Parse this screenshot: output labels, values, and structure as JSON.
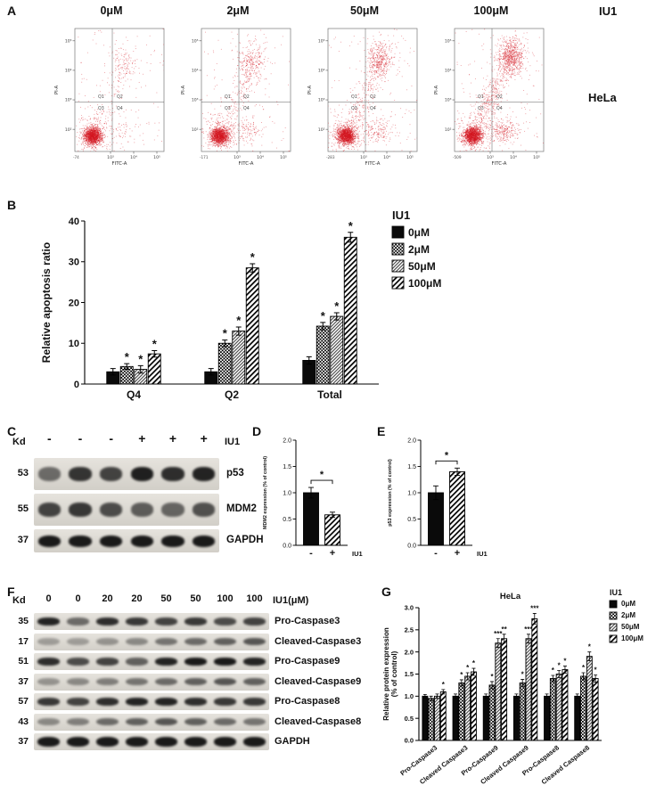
{
  "figure": {
    "panel_labels": {
      "A": "A",
      "B": "B",
      "C": "C",
      "D": "D",
      "E": "E",
      "F": "F",
      "G": "G"
    }
  },
  "panelA": {
    "concentrations": [
      "0μM",
      "2μM",
      "50μM",
      "100μM"
    ],
    "treatment": "IU1",
    "cell_line": "HeLa",
    "x_axis": "FITC-A",
    "y_axis": "PI-A",
    "quadrant_labels": [
      "Q1",
      "Q2",
      "Q3",
      "Q4"
    ],
    "x_ticks": [
      "10³",
      "10⁴",
      "10⁵"
    ],
    "y_ticks": [
      "10²",
      "10³",
      "10⁴",
      "10⁵"
    ],
    "x_min_labels": [
      "-74",
      "-171",
      "-283",
      "-509"
    ],
    "apoptotic_fraction_estimate": [
      0.08,
      0.3,
      0.5,
      0.95
    ]
  },
  "panelC": {
    "kd_label": "Kd",
    "treatment": "IU1",
    "lane_signs": [
      "-",
      "-",
      "-",
      "+",
      "+",
      "+"
    ],
    "rows": [
      {
        "kd": "53",
        "label": "p53",
        "intensities": [
          0.55,
          0.82,
          0.75,
          0.92,
          0.85,
          0.9
        ]
      },
      {
        "kd": "55",
        "label": "MDM2",
        "intensities": [
          0.75,
          0.8,
          0.7,
          0.62,
          0.58,
          0.68
        ]
      },
      {
        "kd": "37",
        "label": "GAPDH",
        "intensities": [
          0.95,
          0.95,
          0.95,
          0.95,
          0.95,
          0.95
        ]
      }
    ]
  },
  "panelF": {
    "kd_label": "Kd",
    "treatment": "IU1(μM)",
    "lane_labels": [
      "0",
      "0",
      "20",
      "20",
      "50",
      "50",
      "100",
      "100"
    ],
    "rows": [
      {
        "kd": "35",
        "label": "Pro-Caspase3",
        "intensities": [
          0.9,
          0.55,
          0.85,
          0.8,
          0.75,
          0.8,
          0.7,
          0.75
        ]
      },
      {
        "kd": "17",
        "label": "Cleaved-Caspase3",
        "intensities": [
          0.3,
          0.3,
          0.35,
          0.4,
          0.5,
          0.55,
          0.6,
          0.65
        ]
      },
      {
        "kd": "51",
        "label": "Pro-Caspase9",
        "intensities": [
          0.85,
          0.7,
          0.75,
          0.6,
          0.9,
          0.95,
          0.95,
          0.9
        ]
      },
      {
        "kd": "37",
        "label": "Cleaved-Caspase9",
        "intensities": [
          0.35,
          0.4,
          0.45,
          0.5,
          0.55,
          0.6,
          0.65,
          0.6
        ]
      },
      {
        "kd": "57",
        "label": "Pro-Caspase8",
        "intensities": [
          0.8,
          0.75,
          0.85,
          0.9,
          0.9,
          0.85,
          0.8,
          0.8
        ]
      },
      {
        "kd": "43",
        "label": "Cleaved-Caspase8",
        "intensities": [
          0.4,
          0.45,
          0.55,
          0.6,
          0.65,
          0.6,
          0.55,
          0.5
        ]
      },
      {
        "kd": "37",
        "label": "GAPDH",
        "intensities": [
          0.95,
          0.95,
          0.95,
          0.95,
          0.95,
          0.95,
          0.95,
          0.95
        ]
      }
    ]
  },
  "chart_data": [
    {
      "id": "A",
      "type": "scatter",
      "subplots": [
        "0μM",
        "2μM",
        "50μM",
        "100μM"
      ],
      "xlabel": "FITC-A",
      "ylabel": "PI-A",
      "quadrants": [
        "Q1",
        "Q2",
        "Q3",
        "Q4"
      ]
    },
    {
      "id": "B",
      "type": "bar",
      "ylabel": "Relative apoptosis ratio",
      "ylim": [
        0,
        40
      ],
      "yticks": [
        0,
        10,
        20,
        30,
        40
      ],
      "categories": [
        "Q4",
        "Q2",
        "Total"
      ],
      "legend_title": "IU1",
      "series": [
        {
          "name": "0μM",
          "pattern": "solid",
          "values": [
            3.0,
            3.0,
            5.8
          ],
          "errors": [
            0.8,
            0.8,
            0.9
          ],
          "sig": [
            "",
            "",
            ""
          ]
        },
        {
          "name": "2μM",
          "pattern": "checker",
          "values": [
            4.3,
            10.0,
            14.2
          ],
          "errors": [
            0.7,
            0.8,
            0.9
          ],
          "sig": [
            "*",
            "*",
            "*"
          ]
        },
        {
          "name": "50μM",
          "pattern": "fine",
          "values": [
            3.6,
            13.0,
            16.6
          ],
          "errors": [
            0.9,
            1.0,
            0.9
          ],
          "sig": [
            "*",
            "*",
            "*"
          ]
        },
        {
          "name": "100μM",
          "pattern": "stripes",
          "values": [
            7.4,
            28.5,
            36.0
          ],
          "errors": [
            0.8,
            1.0,
            1.2
          ],
          "sig": [
            "*",
            "*",
            "*"
          ]
        }
      ]
    },
    {
      "id": "D",
      "type": "bar",
      "ylabel": "MDM2 expression (% of control)",
      "ylim": [
        0,
        2
      ],
      "yticks": [
        "0.0",
        "0.5",
        "1.0",
        "1.5",
        "2.0"
      ],
      "categories": [
        "-",
        "+"
      ],
      "xlabel": "IU1",
      "values": [
        1.0,
        0.58
      ],
      "errors": [
        0.1,
        0.05
      ],
      "patterns": [
        "solid",
        "stripes"
      ],
      "sig": "*"
    },
    {
      "id": "E",
      "type": "bar",
      "ylabel": "p53 expression (% of control)",
      "ylim": [
        0,
        2
      ],
      "yticks": [
        "0.0",
        "0.5",
        "1.0",
        "1.5",
        "2.0"
      ],
      "categories": [
        "-",
        "+"
      ],
      "xlabel": "IU1",
      "values": [
        1.0,
        1.4
      ],
      "errors": [
        0.13,
        0.07
      ],
      "patterns": [
        "solid",
        "stripes"
      ],
      "sig": "*"
    },
    {
      "id": "G",
      "type": "bar",
      "title": "HeLa",
      "ylabel_lines": [
        "Relative protein expression",
        "(% of control)"
      ],
      "ylim": [
        0,
        3
      ],
      "yticks": [
        "0.0",
        "0.5",
        "1.0",
        "1.5",
        "2.0",
        "2.5",
        "3.0"
      ],
      "categories": [
        "Pro-Caspase3",
        "Cleaved Caspase3",
        "Pro-Caspase9",
        "Cleaved Caspase9",
        "Pro-Caspase8",
        "Cleaved Caspase8"
      ],
      "legend_title": "IU1",
      "series": [
        {
          "name": "0μM",
          "pattern": "solid",
          "values": [
            1.0,
            1.0,
            1.0,
            1.0,
            1.0,
            1.0
          ],
          "errors": [
            0.04,
            0.05,
            0.05,
            0.05,
            0.05,
            0.05
          ],
          "sig": [
            "",
            "",
            "",
            "",
            "",
            ""
          ]
        },
        {
          "name": "2μM",
          "pattern": "checker",
          "values": [
            0.95,
            1.3,
            1.25,
            1.3,
            1.4,
            1.45
          ],
          "errors": [
            0.05,
            0.07,
            0.08,
            0.08,
            0.07,
            0.08
          ],
          "sig": [
            "",
            "*",
            "*",
            "*",
            "*",
            "*"
          ]
        },
        {
          "name": "50μM",
          "pattern": "fine",
          "values": [
            1.0,
            1.45,
            2.2,
            2.3,
            1.5,
            1.9
          ],
          "errors": [
            0.05,
            0.08,
            0.1,
            0.1,
            0.08,
            0.1
          ],
          "sig": [
            "",
            "*",
            "***",
            "***",
            "*",
            "*"
          ]
        },
        {
          "name": "100μM",
          "pattern": "stripes",
          "values": [
            1.1,
            1.55,
            2.3,
            2.75,
            1.6,
            1.4
          ],
          "errors": [
            0.05,
            0.08,
            0.1,
            0.12,
            0.08,
            0.08
          ],
          "sig": [
            "*",
            "*",
            "**",
            "***",
            "*",
            "*"
          ]
        }
      ]
    }
  ]
}
